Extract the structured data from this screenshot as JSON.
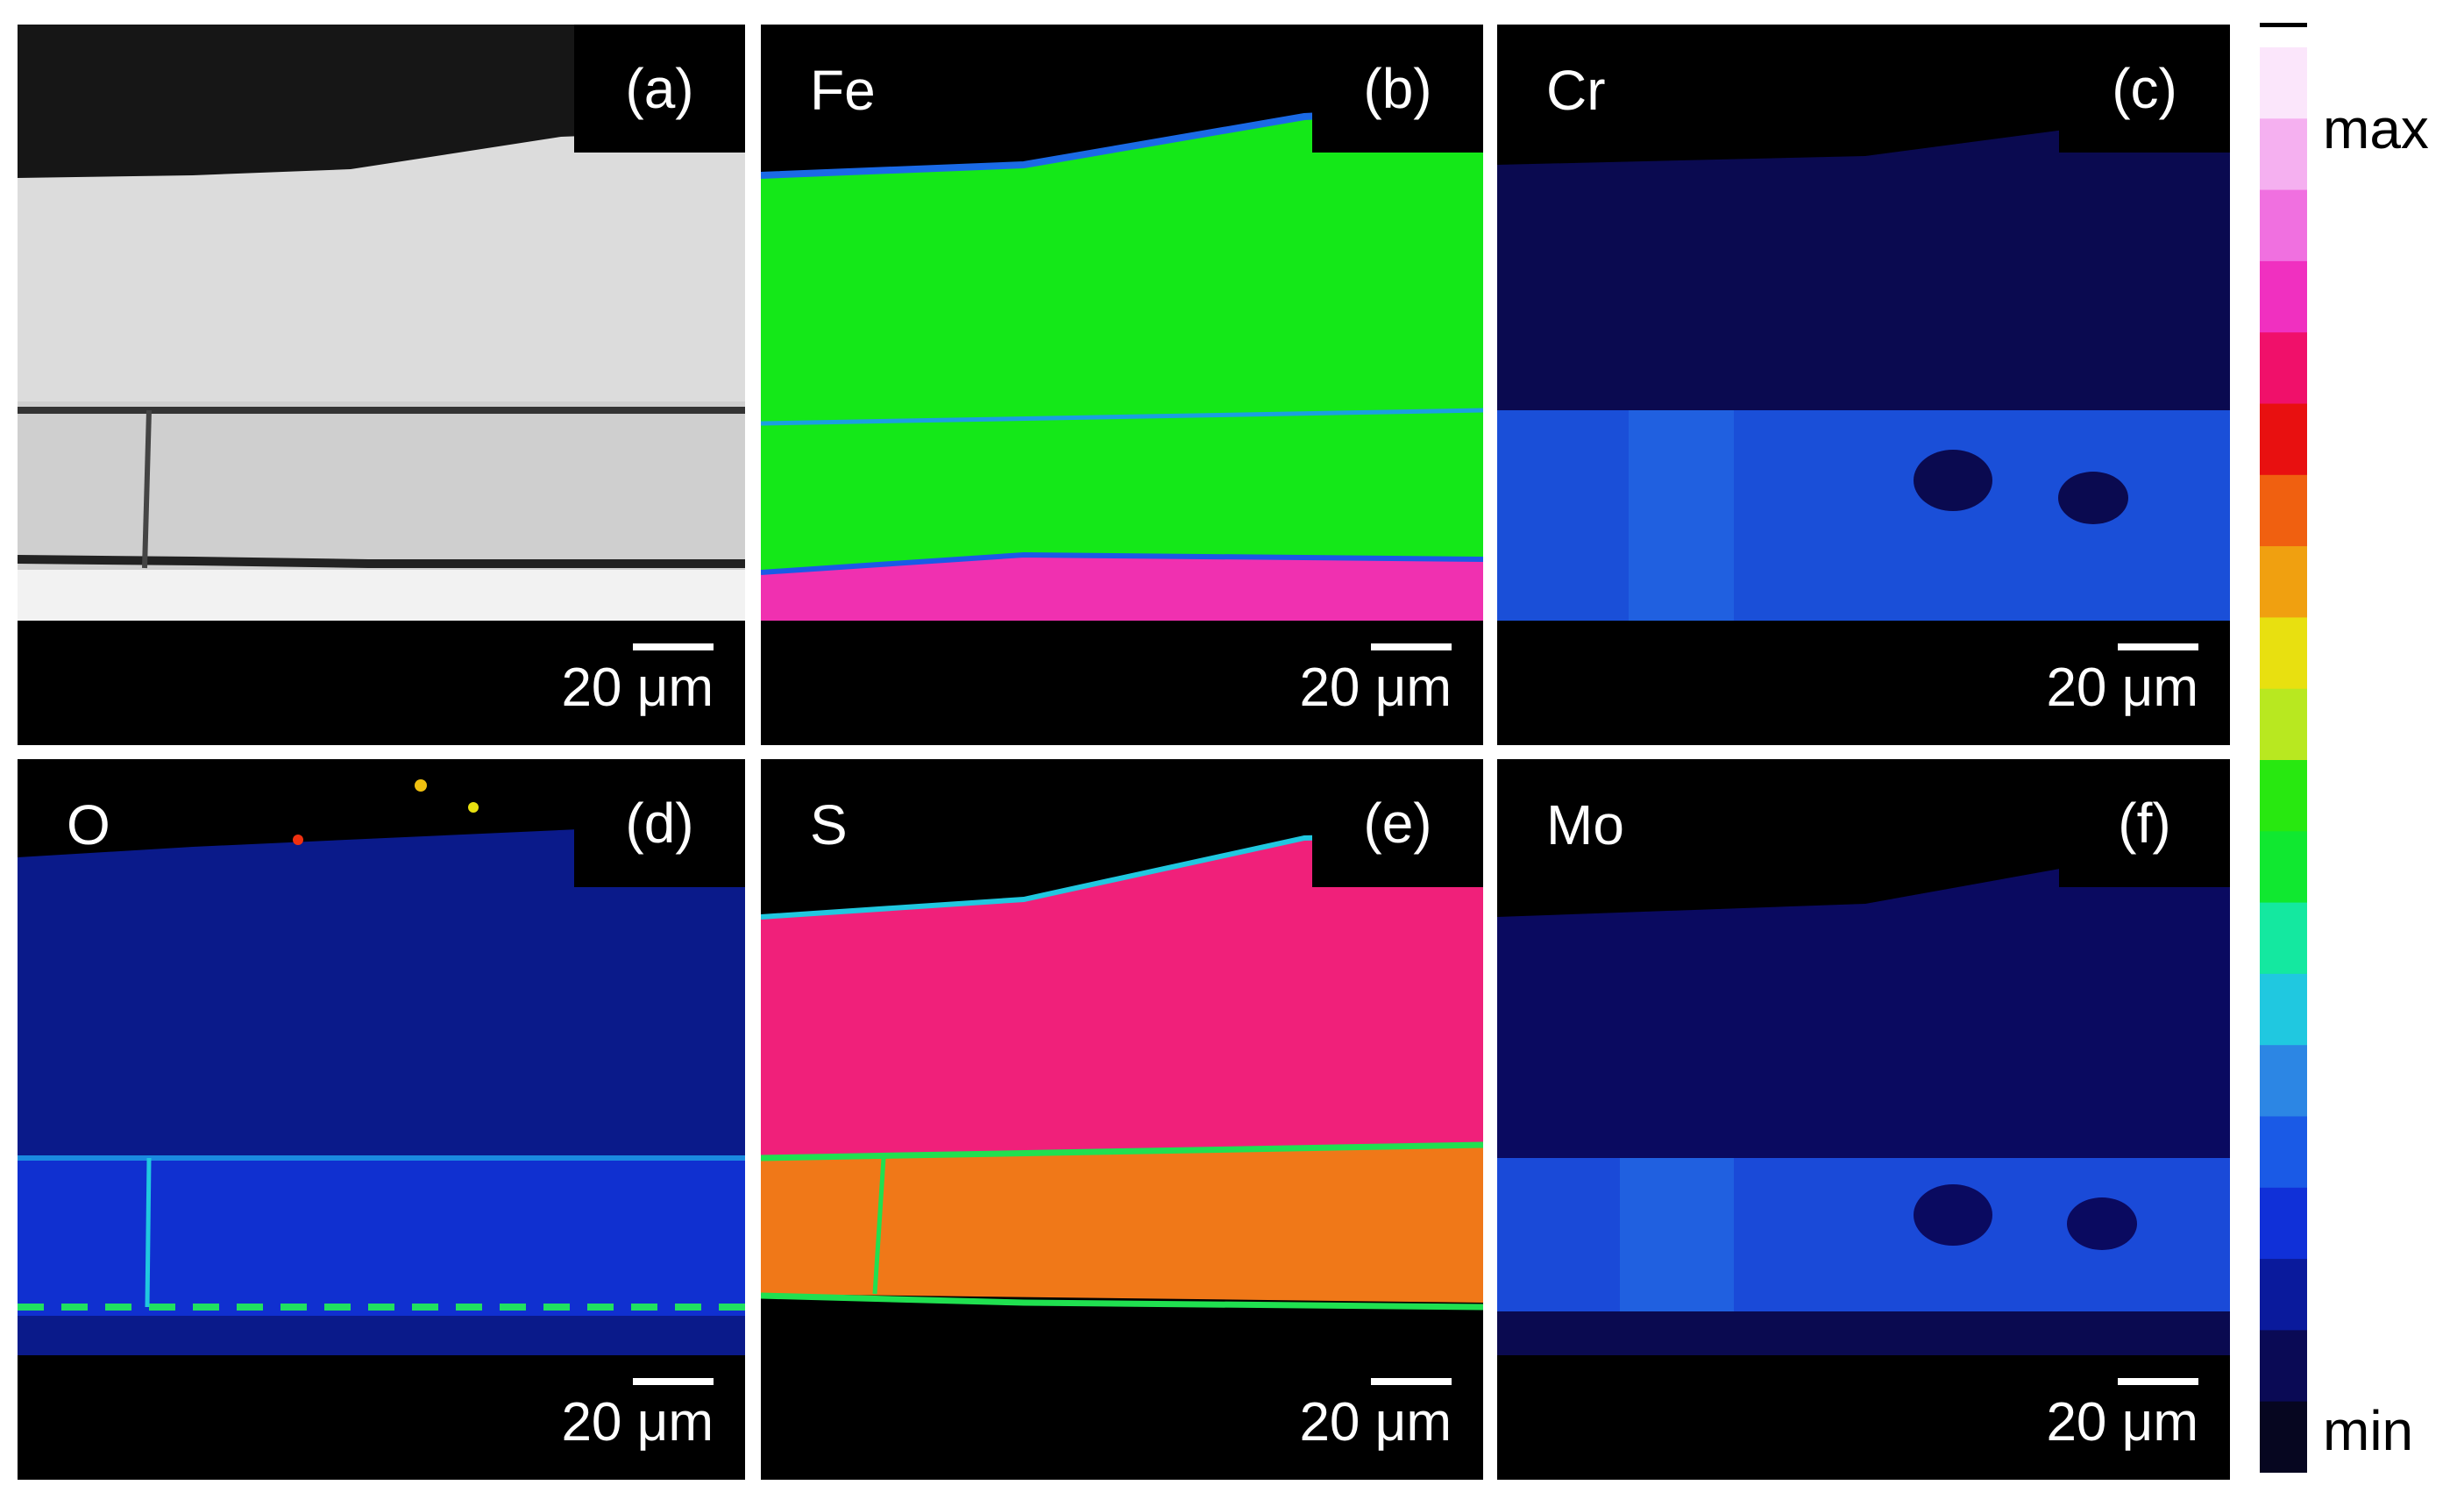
{
  "panels": [
    {
      "letter": "(a)",
      "element": "",
      "scale": "20 μm"
    },
    {
      "letter": "(b)",
      "element": "Fe",
      "scale": "20 μm"
    },
    {
      "letter": "(c)",
      "element": "Cr",
      "scale": "20 μm"
    },
    {
      "letter": "(d)",
      "element": "O",
      "scale": "20 μm"
    },
    {
      "letter": "(e)",
      "element": "S",
      "scale": "20 μm"
    },
    {
      "letter": "(f)",
      "element": "Mo",
      "scale": "20 μm"
    }
  ],
  "colorbar": {
    "max_label": "max",
    "min_label": "min",
    "colors": [
      "#060620",
      "#0a0a55",
      "#0a1a9c",
      "#1030d8",
      "#1a5ae6",
      "#2c86e4",
      "#20c8e0",
      "#14e8a0",
      "#10e830",
      "#28e810",
      "#b8e820",
      "#e8e010",
      "#f0a010",
      "#f06010",
      "#e81010",
      "#f0106a",
      "#f030c0",
      "#f070e0",
      "#f5b0f0",
      "#fbe6fb"
    ]
  }
}
